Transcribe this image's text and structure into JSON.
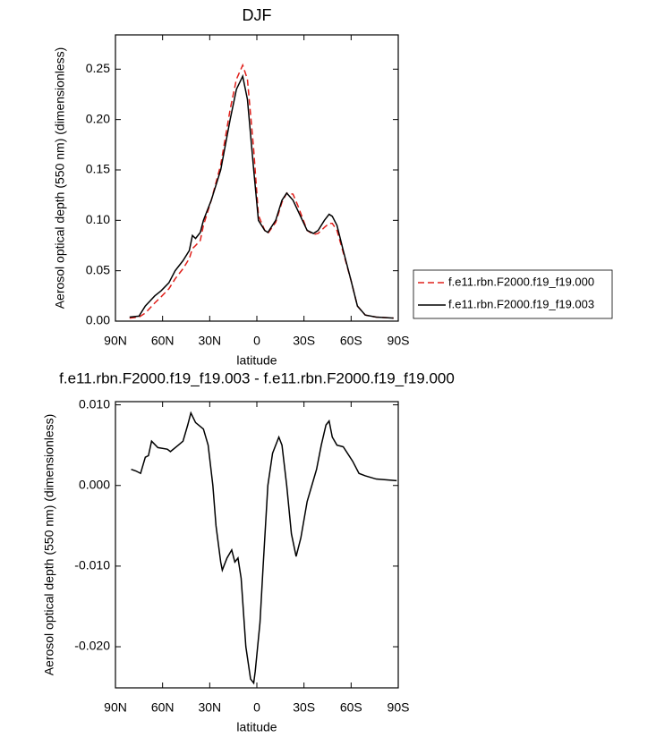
{
  "chart_data": [
    {
      "type": "line",
      "title": "DJF",
      "y_label": "Aerosol optical depth (550 nm) (dimensionless)",
      "x_label": "latitude",
      "xlim": [
        90,
        -90
      ],
      "xticks": [
        {
          "value": 90,
          "label": "90N"
        },
        {
          "value": 60,
          "label": "60N"
        },
        {
          "value": 30,
          "label": "30N"
        },
        0,
        {
          "value": -30,
          "label": "30S"
        },
        {
          "value": -60,
          "label": "60S"
        },
        {
          "value": -90,
          "label": "90S"
        }
      ],
      "ylim": [
        0,
        0.284
      ],
      "yticks": [
        {
          "value": 0,
          "label": "0.00"
        },
        {
          "value": 0.05,
          "label": "0.05"
        },
        {
          "value": 0.1,
          "label": "0.10"
        },
        {
          "value": 0.15,
          "label": "0.15"
        },
        {
          "value": 0.2,
          "label": "0.20"
        },
        {
          "value": 0.25,
          "label": "0.25"
        }
      ],
      "legend": "right",
      "x": [
        81,
        75,
        71,
        68,
        65,
        61,
        56,
        52,
        47,
        43,
        41,
        39,
        36,
        34,
        29,
        23,
        17,
        13,
        9,
        6,
        2,
        -1,
        -5,
        -7,
        -12,
        -16,
        -19,
        -23,
        -26,
        -32,
        -36,
        -39,
        -43,
        -46,
        -48,
        -51,
        -55,
        -60,
        -64,
        -69,
        -76,
        -87
      ],
      "series": [
        {
          "name": "f.e11.rbn.F2000.f19_f19.000",
          "color": "#e0201b",
          "dashed": true,
          "values": [
            0.003,
            0.004,
            0.008,
            0.013,
            0.018,
            0.024,
            0.032,
            0.042,
            0.052,
            0.062,
            0.072,
            0.075,
            0.08,
            0.095,
            0.12,
            0.155,
            0.21,
            0.24,
            0.254,
            0.24,
            0.17,
            0.105,
            0.09,
            0.087,
            0.098,
            0.118,
            0.127,
            0.126,
            0.115,
            0.09,
            0.086,
            0.087,
            0.093,
            0.097,
            0.097,
            0.09,
            0.068,
            0.04,
            0.015,
            0.006,
            0.004,
            0.003
          ]
        },
        {
          "name": "f.e11.rbn.F2000.f19_f19.003",
          "color": "#000000",
          "dashed": false,
          "values": [
            0.004,
            0.005,
            0.015,
            0.02,
            0.025,
            0.03,
            0.038,
            0.05,
            0.06,
            0.07,
            0.085,
            0.082,
            0.088,
            0.1,
            0.12,
            0.15,
            0.2,
            0.23,
            0.243,
            0.22,
            0.15,
            0.1,
            0.09,
            0.088,
            0.1,
            0.12,
            0.127,
            0.12,
            0.11,
            0.09,
            0.087,
            0.09,
            0.1,
            0.106,
            0.104,
            0.095,
            0.07,
            0.04,
            0.015,
            0.006,
            0.004,
            0.003
          ]
        }
      ]
    },
    {
      "type": "line",
      "title": "f.e11.rbn.F2000.f19_f19.003 - f.e11.rbn.F2000.f19_f19.000",
      "y_label": "Aerosol optical depth (550 nm) (dimensionless)",
      "x_label": "latitude",
      "xlim": [
        90,
        -90
      ],
      "xticks": [
        {
          "value": 90,
          "label": "90N"
        },
        {
          "value": 60,
          "label": "60N"
        },
        {
          "value": 30,
          "label": "30N"
        },
        0,
        {
          "value": -30,
          "label": "30S"
        },
        {
          "value": -60,
          "label": "60S"
        },
        {
          "value": -90,
          "label": "90S"
        }
      ],
      "ylim": [
        -0.0251,
        0.0104
      ],
      "yticks": [
        {
          "value": -0.02,
          "label": "-0.020"
        },
        {
          "value": -0.01,
          "label": "-0.010"
        },
        {
          "value": 0,
          "label": "0.000"
        },
        {
          "value": 0.01,
          "label": "0.010"
        }
      ],
      "x": [
        80,
        77,
        74,
        71,
        69,
        67,
        63,
        57,
        55,
        50,
        47,
        44,
        42,
        39,
        34,
        31,
        28,
        26,
        23,
        22,
        19,
        16,
        14,
        12,
        10,
        7,
        4,
        2,
        1,
        -2,
        -4,
        -7,
        -10,
        -14,
        -16,
        -19,
        -22,
        -25,
        -28,
        -32,
        -35,
        -38,
        -41,
        -44,
        -46,
        -48,
        -51,
        -55,
        -61,
        -65,
        -69,
        -76,
        -89
      ],
      "series": [
        {
          "color": "#000000",
          "dashed": false,
          "values": [
            0.002,
            0.0018,
            0.0015,
            0.0035,
            0.0037,
            0.0055,
            0.0047,
            0.0045,
            0.0042,
            0.005,
            0.0055,
            0.0075,
            0.009,
            0.0078,
            0.007,
            0.005,
            0.0,
            -0.005,
            -0.0095,
            -0.0105,
            -0.009,
            -0.008,
            -0.0095,
            -0.009,
            -0.0115,
            -0.02,
            -0.024,
            -0.0245,
            -0.023,
            -0.017,
            -0.01,
            0.0,
            0.004,
            0.006,
            0.005,
            0.0,
            -0.006,
            -0.0088,
            -0.0065,
            -0.002,
            0.0,
            0.002,
            0.005,
            0.0075,
            0.008,
            0.006,
            0.005,
            0.0048,
            0.003,
            0.0015,
            0.0012,
            0.0008,
            0.0006
          ]
        }
      ]
    }
  ]
}
